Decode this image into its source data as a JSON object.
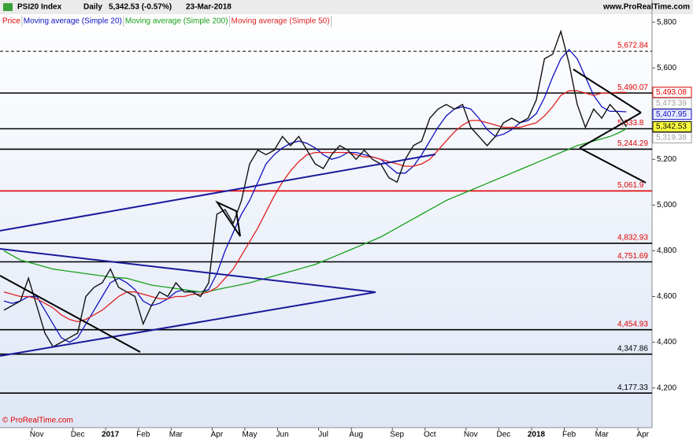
{
  "chart_data": {
    "type": "line",
    "title": "PSI20 Index",
    "period": "Daily",
    "last_quote": "5,342.53 (-0.57%)",
    "date": "23-Mar-2018",
    "source": "www.ProRealTime.com",
    "copyright": "© ProRealTime.com",
    "categories": [
      null,
      null,
      null,
      null,
      "Nov",
      null,
      null,
      null,
      null,
      "Dec",
      null,
      null,
      null,
      "2017",
      null,
      null,
      null,
      "Feb",
      null,
      null,
      null,
      "Mar",
      null,
      null,
      null,
      null,
      "Apr",
      null,
      null,
      null,
      "May",
      null,
      null,
      null,
      "Jun",
      null,
      null,
      null,
      null,
      "Jul",
      null,
      null,
      null,
      "Aug",
      null,
      null,
      null,
      null,
      "Sep",
      null,
      null,
      null,
      "Oct",
      null,
      null,
      null,
      null,
      "Nov",
      null,
      null,
      null,
      "Dec",
      null,
      null,
      null,
      "2018",
      null,
      null,
      null,
      "Feb",
      null,
      null,
      null,
      "Mar",
      null,
      null,
      null,
      null,
      "Apr"
    ],
    "series": [
      {
        "name": "Price",
        "color": "#e00000",
        "line_color": "#111111",
        "values": [
          4540,
          4560,
          4580,
          4680,
          4560,
          4440,
          4380,
          4400,
          4420,
          4440,
          4600,
          4640,
          4660,
          4720,
          4640,
          4620,
          4600,
          4480,
          4560,
          4620,
          4600,
          4660,
          4620,
          4620,
          4600,
          4660,
          4960,
          4980,
          4920,
          5020,
          5180,
          5240,
          5220,
          5240,
          5300,
          5260,
          5300,
          5240,
          5180,
          5160,
          5220,
          5260,
          5240,
          5200,
          5240,
          5200,
          5180,
          5120,
          5100,
          5200,
          5260,
          5280,
          5380,
          5420,
          5440,
          5420,
          5440,
          5340,
          5300,
          5260,
          5300,
          5360,
          5380,
          5360,
          5380,
          5460,
          5640,
          5660,
          5760,
          5620,
          5440,
          5340,
          5420,
          5380,
          5440,
          5400,
          5342.53,
          null,
          null
        ]
      },
      {
        "name": "Moving average (Simple 20)",
        "color": "#1010c0",
        "values": [
          4580,
          4570,
          4580,
          4600,
          4600,
          4540,
          4480,
          4420,
          4400,
          4420,
          4480,
          4540,
          4600,
          4660,
          4680,
          4660,
          4630,
          4580,
          4560,
          4570,
          4590,
          4620,
          4630,
          4620,
          4620,
          4630,
          4700,
          4800,
          4880,
          4960,
          5020,
          5100,
          5180,
          5220,
          5250,
          5270,
          5280,
          5270,
          5250,
          5220,
          5200,
          5210,
          5230,
          5230,
          5220,
          5210,
          5200,
          5170,
          5140,
          5140,
          5170,
          5220,
          5280,
          5340,
          5390,
          5420,
          5430,
          5420,
          5380,
          5330,
          5300,
          5310,
          5330,
          5360,
          5370,
          5400,
          5470,
          5560,
          5640,
          5680,
          5640,
          5560,
          5480,
          5430,
          5410,
          5410,
          5407.95,
          null,
          null
        ]
      },
      {
        "name": "Moving average (Simple 200)",
        "color": "#18a018",
        "values": [
          4800,
          4780,
          4760,
          4750,
          4740,
          4730,
          4720,
          4715,
          4710,
          4705,
          4700,
          4695,
          4690,
          4685,
          4682,
          4680,
          4670,
          4660,
          4650,
          4645,
          4640,
          4635,
          4630,
          4625,
          4620,
          4622,
          4630,
          4638,
          4645,
          4652,
          4660,
          4670,
          4680,
          4690,
          4700,
          4710,
          4720,
          4730,
          4740,
          4755,
          4770,
          4785,
          4800,
          4815,
          4830,
          4845,
          4860,
          4880,
          4900,
          4920,
          4940,
          4960,
          4980,
          5000,
          5020,
          5035,
          5050,
          5065,
          5080,
          5095,
          5110,
          5125,
          5140,
          5155,
          5170,
          5185,
          5200,
          5215,
          5230,
          5245,
          5260,
          5270,
          5280,
          5290,
          5300,
          5315,
          5333.8,
          null,
          null
        ]
      },
      {
        "name": "Moving average (Simple 50)",
        "color": "#e02020",
        "values": [
          4620,
          4610,
          4600,
          4600,
          4590,
          4570,
          4550,
          4520,
          4500,
          4490,
          4500,
          4520,
          4540,
          4570,
          4600,
          4620,
          4620,
          4610,
          4600,
          4590,
          4590,
          4600,
          4600,
          4610,
          4610,
          4620,
          4640,
          4680,
          4720,
          4780,
          4840,
          4900,
          4970,
          5040,
          5100,
          5150,
          5190,
          5220,
          5230,
          5230,
          5230,
          5230,
          5230,
          5220,
          5210,
          5210,
          5200,
          5190,
          5180,
          5170,
          5170,
          5180,
          5200,
          5240,
          5280,
          5320,
          5350,
          5370,
          5370,
          5360,
          5350,
          5340,
          5340,
          5340,
          5350,
          5360,
          5390,
          5430,
          5480,
          5500,
          5500,
          5490,
          5480,
          5490,
          5490,
          5493,
          5493.08,
          null,
          null
        ]
      }
    ],
    "ylim": [
      4030,
      5835
    ],
    "yticks": [
      {
        "value": 4200,
        "label": "4,200"
      },
      {
        "value": 4400,
        "label": "4,400"
      },
      {
        "value": 4600,
        "label": "4,600"
      },
      {
        "value": 4800,
        "label": "4,800"
      },
      {
        "value": 5000,
        "label": "5,000"
      },
      {
        "value": 5200,
        "label": "5,200"
      },
      {
        "value": 5400,
        "label": "5,400"
      },
      {
        "value": 5600,
        "label": "5,600"
      },
      {
        "value": 5800,
        "label": "5,800"
      }
    ],
    "levels": [
      {
        "value": 5672.84,
        "label": "5,672.84",
        "color": "#000000",
        "label_color": "#e00000",
        "dashed": true
      },
      {
        "value": 5490.07,
        "label": "5,490.07",
        "color": "#000000",
        "label_color": "#e00000",
        "dashed": false
      },
      {
        "value": 5333.8,
        "label": "5,333.8",
        "color": "#000000",
        "label_color": "#e00000",
        "dashed": false
      },
      {
        "value": 5244.29,
        "label": "5,244.29",
        "color": "#000000",
        "label_color": "#e00000",
        "dashed": false
      },
      {
        "value": 5061.9,
        "label": "5,061.9",
        "color": "#e00000",
        "label_color": "#e00000",
        "dashed": false
      },
      {
        "value": 4832.93,
        "label": "4,832.93",
        "color": "#000000",
        "label_color": "#e00000",
        "dashed": false
      },
      {
        "value": 4751.69,
        "label": "4,751.69",
        "color": "#000000",
        "label_color": "#e00000",
        "dashed": false
      },
      {
        "value": 4454.93,
        "label": "4,454.93",
        "color": "#000000",
        "label_color": "#e00000",
        "dashed": false
      },
      {
        "value": 4347.86,
        "label": "4,347.86",
        "color": "#000000",
        "label_color": "#000000",
        "dashed": false
      },
      {
        "value": 4177.33,
        "label": "4,177.33",
        "color": "#000000",
        "label_color": "#000000",
        "dashed": false
      }
    ],
    "price_tags": [
      {
        "value": 5493.08,
        "label": "5,493.08",
        "color": "#e00000",
        "background": "#ffffff"
      },
      {
        "value": 5473.39,
        "label": "5,473.39",
        "color": "#a0a0a0",
        "background": "#ffffff"
      },
      {
        "value": 5407.95,
        "label": "5,407.95",
        "color": "#1010c0",
        "background": "#e6e8ff"
      },
      {
        "value": 5342.53,
        "label": "5,342.53",
        "color": "#000000",
        "background": "#ffff40"
      },
      {
        "value": 5319.38,
        "label": "5,319.38",
        "color": "#a0a0a0",
        "background": "#ffffff"
      }
    ]
  }
}
